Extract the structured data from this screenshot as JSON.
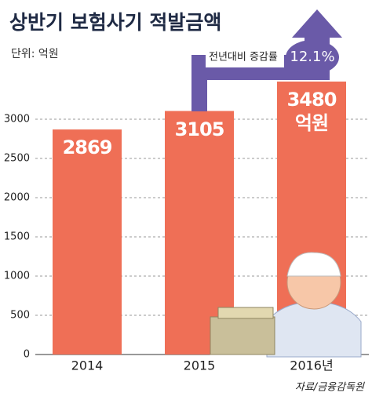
{
  "chart_data": {
    "type": "bar",
    "title": "상반기 보험사기 적발금액",
    "subtitle": "단위: 억원",
    "categories": [
      "2014",
      "2015",
      "2016년"
    ],
    "values": [
      2869,
      3105,
      3480
    ],
    "value_labels": [
      "2869",
      "3105",
      "3480\n억원"
    ],
    "color": "#ef6f56",
    "ylim": [
      0,
      3500
    ],
    "yticks": [
      0,
      500,
      1000,
      1500,
      2000,
      2500,
      3000
    ],
    "grid": true,
    "annotation": {
      "text": "전년대비 증감률",
      "value": "12.1%"
    },
    "source": "자료/금융감독원"
  }
}
